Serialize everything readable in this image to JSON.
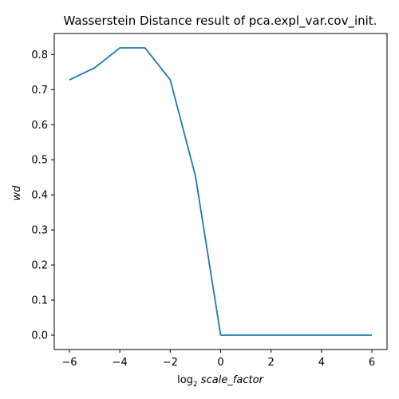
{
  "chart_data": {
    "type": "line",
    "title": "Wasserstein Distance result of pca.expl_var.cov_init.",
    "xlabel": {
      "prefix": "log",
      "subscript": "2",
      "name": "scale_factor"
    },
    "ylabel": "wd",
    "xlim": [
      -6.6,
      6.6
    ],
    "ylim": [
      -0.041,
      0.86
    ],
    "xticks": [
      -6,
      -4,
      -2,
      0,
      2,
      4,
      6
    ],
    "xtick_labels": [
      "−6",
      "−4",
      "−2",
      "0",
      "2",
      "4",
      "6"
    ],
    "yticks": [
      0.0,
      0.1,
      0.2,
      0.3,
      0.4,
      0.5,
      0.6,
      0.7,
      0.8
    ],
    "ytick_labels": [
      "0.0",
      "0.1",
      "0.2",
      "0.3",
      "0.4",
      "0.5",
      "0.6",
      "0.7",
      "0.8"
    ],
    "grid": false,
    "series": [
      {
        "color": "#1f77b4",
        "x": [
          -6,
          -5,
          -4,
          -3,
          -2,
          -1,
          0,
          1,
          2,
          3,
          4,
          5,
          6
        ],
        "y": [
          0.728,
          0.762,
          0.819,
          0.819,
          0.728,
          0.454,
          0.0,
          0.0,
          0.0,
          0.0,
          0.0,
          0.0,
          0.0
        ]
      }
    ]
  }
}
